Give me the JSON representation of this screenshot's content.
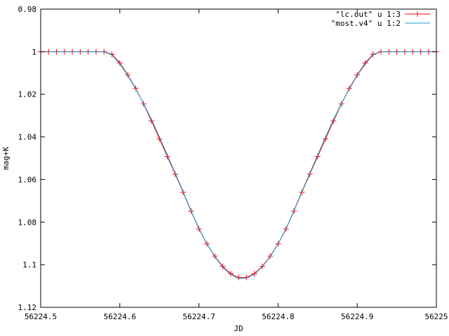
{
  "chart_data": {
    "type": "line",
    "title": "",
    "xlabel": "JD",
    "ylabel": "mag+K",
    "xlim": [
      56224.5,
      56225.0
    ],
    "ylim": [
      0.98,
      1.12
    ],
    "y_inverted": true,
    "grid": false,
    "legend_placement": "top-right",
    "x_ticks": [
      56224.5,
      56224.6,
      56224.7,
      56224.8,
      56224.9,
      56225.0
    ],
    "x_tick_labels": [
      "56224.5",
      "56224.6",
      "56224.7",
      "56224.8",
      "56224.9",
      "56225"
    ],
    "y_ticks": [
      0.98,
      1.0,
      1.02,
      1.04,
      1.06,
      1.08,
      1.1,
      1.12
    ],
    "y_tick_labels": [
      "0.98",
      "1",
      "1.02",
      "1.04",
      "1.06",
      "1.08",
      "1.1",
      "1.12"
    ],
    "series": [
      {
        "name": "\"lc.out\"  u 1:3",
        "color": "#ff0000",
        "style": "linespoints-plus",
        "x": [
          56224.5,
          56224.51,
          56224.52,
          56224.53,
          56224.54,
          56224.55,
          56224.56,
          56224.57,
          56224.58,
          56224.59,
          56224.6,
          56224.61,
          56224.62,
          56224.63,
          56224.64,
          56224.65,
          56224.66,
          56224.67,
          56224.68,
          56224.69,
          56224.7,
          56224.71,
          56224.72,
          56224.73,
          56224.74,
          56224.75,
          56224.76,
          56224.77,
          56224.78,
          56224.79,
          56224.8,
          56224.81,
          56224.82,
          56224.83,
          56224.84,
          56224.85,
          56224.86,
          56224.87,
          56224.88,
          56224.89,
          56224.9,
          56224.91,
          56224.92,
          56224.93,
          56224.94,
          56224.95,
          56224.96,
          56224.97,
          56224.98,
          56224.99,
          56225.0
        ],
        "y": [
          1.0,
          1.0,
          1.0,
          1.0,
          1.0,
          1.0,
          1.0,
          1.0,
          1.0,
          1.0012,
          1.0053,
          1.0109,
          1.0172,
          1.0245,
          1.0325,
          1.0409,
          1.0492,
          1.0575,
          1.066,
          1.0748,
          1.0832,
          1.0902,
          1.096,
          1.1008,
          1.1042,
          1.106,
          1.106,
          1.1042,
          1.1008,
          1.096,
          1.0902,
          1.0832,
          1.0748,
          1.066,
          1.0575,
          1.0492,
          1.0409,
          1.0325,
          1.0245,
          1.0172,
          1.0109,
          1.0053,
          1.0012,
          1.0,
          1.0,
          1.0,
          1.0,
          1.0,
          1.0,
          1.0,
          1.0
        ]
      },
      {
        "name": "\"most.v4\" u 1:2",
        "color": "#1a9ad6",
        "style": "line",
        "x": [
          56224.5,
          56224.51,
          56224.52,
          56224.53,
          56224.54,
          56224.55,
          56224.56,
          56224.57,
          56224.58,
          56224.59,
          56224.6,
          56224.61,
          56224.62,
          56224.63,
          56224.64,
          56224.65,
          56224.66,
          56224.67,
          56224.68,
          56224.69,
          56224.7,
          56224.71,
          56224.72,
          56224.73,
          56224.74,
          56224.75,
          56224.76,
          56224.77,
          56224.78,
          56224.79,
          56224.8,
          56224.81,
          56224.82,
          56224.83,
          56224.84,
          56224.85,
          56224.86,
          56224.87,
          56224.88,
          56224.89,
          56224.9,
          56224.91,
          56224.92,
          56224.93,
          56224.94,
          56224.95,
          56224.96,
          56224.97,
          56224.98,
          56224.99,
          56225.0
        ],
        "y": [
          1.0,
          1.0,
          1.0,
          1.0,
          1.0,
          1.0,
          1.0,
          1.0,
          1.0,
          1.0015,
          1.0058,
          1.0112,
          1.0175,
          1.0243,
          1.0318,
          1.04,
          1.0485,
          1.057,
          1.0657,
          1.0746,
          1.083,
          1.0902,
          1.0962,
          1.1012,
          1.1045,
          1.1064,
          1.1063,
          1.1045,
          1.101,
          1.0962,
          1.0902,
          1.083,
          1.0746,
          1.0657,
          1.057,
          1.0485,
          1.04,
          1.0318,
          1.0243,
          1.0175,
          1.0112,
          1.0058,
          1.0015,
          1.0,
          1.0,
          1.0,
          1.0,
          1.0,
          1.0,
          1.0,
          1.0
        ]
      }
    ]
  }
}
